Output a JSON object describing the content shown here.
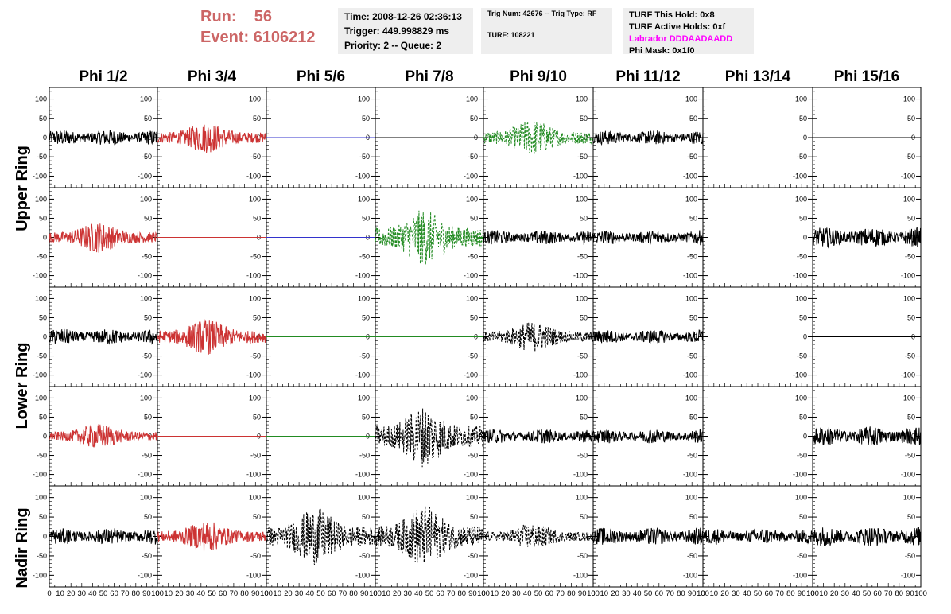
{
  "header": {
    "run_label": "Run:",
    "run_value": "56",
    "event_label": "Event:",
    "event_value": "6106212",
    "time_line": "Time: 2008-12-26 02:36:13",
    "trigger_line": "Trigger: 449.998829 ms",
    "priority_line": "Priority: 2 -- Queue: 2",
    "trig_num_line": "Trig Num: 42676 -- Trig Type: RF",
    "turf_line": "TURF: 108221",
    "turf_hold_line": "TURF This Hold: 0x8",
    "turf_active_line": "TURF Active Holds: 0xf",
    "labrador_line": "Labrador DDDAADAADD",
    "phi_mask_line": "Phi Mask: 0x1f0"
  },
  "columns": [
    "Phi 1/2",
    "Phi 3/4",
    "Phi 5/6",
    "Phi 7/8",
    "Phi 9/10",
    "Phi 11/12",
    "Phi 13/14",
    "Phi 15/16"
  ],
  "row_groups": [
    "Upper Ring",
    "Lower Ring",
    "Nadir Ring"
  ],
  "colors": {
    "black": "#000000",
    "red": "#cc3333",
    "blue": "#3333cc",
    "green": "#228b22",
    "header_red": "#cc6666",
    "magenta": "#ff00ff"
  },
  "chart_data": {
    "type": "line",
    "description_of_axes": "5 rows x 8 columns grid of waveform panels",
    "xlim": [
      0,
      100
    ],
    "ylim": [
      -130,
      130
    ],
    "x_ticks": [
      0,
      10,
      20,
      30,
      40,
      50,
      60,
      70,
      80,
      90,
      100
    ],
    "x_tick_labels_row": "0 10 20 30 40 50 60 70 80 90 100",
    "y_ticks_common": [
      -100,
      -50,
      0,
      50,
      100
    ],
    "panels": [
      [
        {
          "col": "Phi 1/2",
          "color": "black",
          "style": "solid",
          "amp": 20,
          "burst": 0
        },
        {
          "col": "Phi 3/4",
          "color": "red",
          "style": "solid",
          "amp": 30,
          "burst": 1
        },
        {
          "col": "Phi 5/6",
          "color": "blue",
          "style": "flat",
          "amp": 0,
          "burst": 0
        },
        {
          "col": "Phi 7/8",
          "color": "black",
          "style": "flat",
          "amp": 0,
          "burst": 0
        },
        {
          "col": "Phi 9/10",
          "color": "green",
          "style": "dashed",
          "amp": 35,
          "burst": 1
        },
        {
          "col": "Phi 11/12",
          "color": "black",
          "style": "solid",
          "amp": 18,
          "burst": 0
        },
        {
          "col": "Phi 13/14",
          "color": "black",
          "style": "none",
          "amp": 0,
          "burst": 0
        },
        {
          "col": "Phi 15/16",
          "color": "black",
          "style": "flat",
          "amp": 0,
          "burst": 0
        }
      ],
      [
        {
          "col": "Phi 1/2",
          "color": "red",
          "style": "solid",
          "amp": 30,
          "burst": 1
        },
        {
          "col": "Phi 3/4",
          "color": "red",
          "style": "flat",
          "amp": 0,
          "burst": 0
        },
        {
          "col": "Phi 5/6",
          "color": "blue",
          "style": "flat",
          "amp": 0,
          "burst": 0
        },
        {
          "col": "Phi 7/8",
          "color": "green",
          "style": "dashed",
          "amp": 55,
          "burst": 1
        },
        {
          "col": "Phi 9/10",
          "color": "black",
          "style": "solid",
          "amp": 18,
          "burst": 0
        },
        {
          "col": "Phi 11/12",
          "color": "black",
          "style": "solid",
          "amp": 18,
          "burst": 0
        },
        {
          "col": "Phi 13/14",
          "color": "black",
          "style": "none",
          "amp": 0,
          "burst": 0
        },
        {
          "col": "Phi 15/16",
          "color": "black",
          "style": "solid",
          "amp": 25,
          "burst": 0
        }
      ],
      [
        {
          "col": "Phi 1/2",
          "color": "black",
          "style": "solid",
          "amp": 20,
          "burst": 0
        },
        {
          "col": "Phi 3/4",
          "color": "red",
          "style": "solid",
          "amp": 35,
          "burst": 1
        },
        {
          "col": "Phi 5/6",
          "color": "green",
          "style": "flat",
          "amp": 0,
          "burst": 0
        },
        {
          "col": "Phi 7/8",
          "color": "green",
          "style": "flat",
          "amp": 0,
          "burst": 0
        },
        {
          "col": "Phi 9/10",
          "color": "black",
          "style": "dashed",
          "amp": 30,
          "burst": 1
        },
        {
          "col": "Phi 11/12",
          "color": "black",
          "style": "solid",
          "amp": 18,
          "burst": 0
        },
        {
          "col": "Phi 13/14",
          "color": "black",
          "style": "none",
          "amp": 0,
          "burst": 0
        },
        {
          "col": "Phi 15/16",
          "color": "black",
          "style": "flat",
          "amp": 0,
          "burst": 0
        }
      ],
      [
        {
          "col": "Phi 1/2",
          "color": "red",
          "style": "solid",
          "amp": 25,
          "burst": 1
        },
        {
          "col": "Phi 3/4",
          "color": "red",
          "style": "flat",
          "amp": 0,
          "burst": 0
        },
        {
          "col": "Phi 5/6",
          "color": "green",
          "style": "flat",
          "amp": 0,
          "burst": 0
        },
        {
          "col": "Phi 7/8",
          "color": "black",
          "style": "dashed",
          "amp": 60,
          "burst": 1
        },
        {
          "col": "Phi 9/10",
          "color": "black",
          "style": "solid",
          "amp": 18,
          "burst": 0
        },
        {
          "col": "Phi 11/12",
          "color": "black",
          "style": "solid",
          "amp": 18,
          "burst": 0
        },
        {
          "col": "Phi 13/14",
          "color": "black",
          "style": "none",
          "amp": 0,
          "burst": 0
        },
        {
          "col": "Phi 15/16",
          "color": "black",
          "style": "solid",
          "amp": 25,
          "burst": 0
        }
      ],
      [
        {
          "col": "Phi 1/2",
          "color": "black",
          "style": "solid",
          "amp": 20,
          "burst": 0
        },
        {
          "col": "Phi 3/4",
          "color": "red",
          "style": "solid",
          "amp": 30,
          "burst": 1
        },
        {
          "col": "Phi 5/6",
          "color": "black",
          "style": "dashed",
          "amp": 55,
          "burst": 1
        },
        {
          "col": "Phi 7/8",
          "color": "black",
          "style": "dashed",
          "amp": 60,
          "burst": 1
        },
        {
          "col": "Phi 9/10",
          "color": "black",
          "style": "dashed",
          "amp": 25,
          "burst": 1
        },
        {
          "col": "Phi 11/12",
          "color": "black",
          "style": "solid",
          "amp": 22,
          "burst": 0
        },
        {
          "col": "Phi 13/14",
          "color": "black",
          "style": "solid",
          "amp": 20,
          "burst": 0
        },
        {
          "col": "Phi 15/16",
          "color": "black",
          "style": "solid",
          "amp": 25,
          "burst": 0
        }
      ]
    ]
  }
}
